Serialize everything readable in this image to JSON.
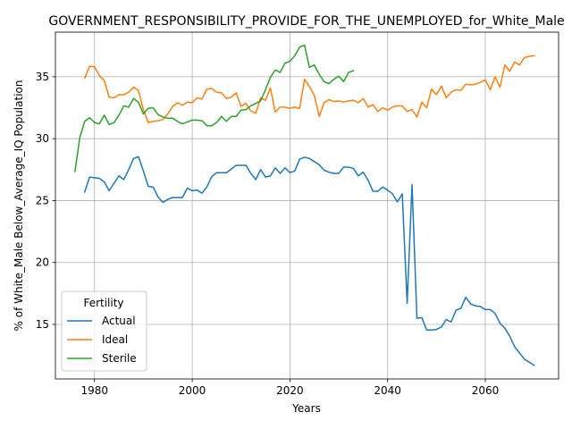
{
  "chart_data": {
    "type": "line",
    "title": "GOVERNMENT_RESPONSIBILITY_PROVIDE_FOR_THE_UNEMPLOYED_for_White_Male",
    "xlabel": "Years",
    "ylabel": "% of White_Male Below_Average_IQ Population",
    "xlim": [
      1972,
      2075
    ],
    "ylim": [
      10.6,
      38.6
    ],
    "x_ticks": [
      1980,
      2000,
      2020,
      2040,
      2060
    ],
    "y_ticks": [
      15,
      20,
      25,
      30,
      35
    ],
    "grid": true,
    "legend": {
      "title": "Fertility",
      "position": "lower-left"
    },
    "series": [
      {
        "name": "Actual",
        "color": "#1f77b4",
        "x": [
          1978,
          1979,
          1980,
          1981,
          1982,
          1983,
          1984,
          1985,
          1986,
          1987,
          1988,
          1989,
          1990,
          1991,
          1992,
          1993,
          1994,
          1995,
          1996,
          1997,
          1998,
          1999,
          2000,
          2001,
          2002,
          2003,
          2004,
          2005,
          2006,
          2007,
          2008,
          2009,
          2010,
          2011,
          2012,
          2013,
          2014,
          2015,
          2016,
          2017,
          2018,
          2019,
          2020,
          2021,
          2022,
          2023,
          2024,
          2025,
          2026,
          2027,
          2028,
          2029,
          2030,
          2031,
          2032,
          2033,
          2034,
          2035,
          2036,
          2037,
          2038,
          2039,
          2040,
          2041,
          2042,
          2043,
          2044,
          2045,
          2046,
          2047,
          2048,
          2049,
          2050,
          2051,
          2052,
          2053,
          2054,
          2055,
          2056,
          2057,
          2058,
          2059,
          2060,
          2061,
          2062,
          2063,
          2064,
          2065,
          2066,
          2067,
          2068,
          2069,
          2070
        ],
        "values": [
          25.7,
          26.9,
          26.85,
          26.8,
          26.5,
          25.8,
          26.4,
          27.0,
          26.7,
          27.5,
          28.4,
          28.55,
          27.4,
          26.15,
          26.1,
          25.3,
          24.85,
          25.1,
          25.25,
          25.25,
          25.25,
          26.0,
          25.8,
          25.85,
          25.6,
          26.1,
          26.95,
          27.25,
          27.25,
          27.25,
          27.55,
          27.85,
          27.85,
          27.85,
          27.2,
          26.7,
          27.5,
          26.9,
          27.0,
          27.65,
          27.2,
          27.65,
          27.25,
          27.4,
          28.35,
          28.5,
          28.4,
          28.15,
          27.9,
          27.45,
          27.3,
          27.2,
          27.2,
          27.7,
          27.7,
          27.6,
          27.0,
          27.3,
          26.65,
          25.75,
          25.75,
          26.1,
          25.85,
          25.55,
          24.9,
          25.55,
          16.7,
          26.3,
          15.5,
          15.55,
          14.55,
          14.55,
          14.6,
          14.8,
          15.4,
          15.2,
          16.15,
          16.3,
          17.2,
          16.65,
          16.5,
          16.45,
          16.2,
          16.2,
          15.9,
          15.1,
          14.7,
          14.05,
          13.2,
          12.7,
          12.2,
          11.95,
          11.7
        ]
      },
      {
        "name": "Ideal",
        "color": "#ff7f0e",
        "x": [
          1978,
          1979,
          1980,
          1981,
          1982,
          1983,
          1984,
          1985,
          1986,
          1987,
          1988,
          1989,
          1990,
          1991,
          1992,
          1993,
          1994,
          1995,
          1996,
          1997,
          1998,
          1999,
          2000,
          2001,
          2002,
          2003,
          2004,
          2005,
          2006,
          2007,
          2008,
          2009,
          2010,
          2011,
          2012,
          2013,
          2014,
          2015,
          2016,
          2017,
          2018,
          2019,
          2020,
          2021,
          2022,
          2023,
          2024,
          2025,
          2026,
          2027,
          2028,
          2029,
          2030,
          2031,
          2032,
          2033,
          2034,
          2035,
          2036,
          2037,
          2038,
          2039,
          2040,
          2041,
          2042,
          2043,
          2044,
          2045,
          2046,
          2047,
          2048,
          2049,
          2050,
          2051,
          2052,
          2053,
          2054,
          2055,
          2056,
          2057,
          2058,
          2059,
          2060,
          2061,
          2062,
          2063,
          2064,
          2065,
          2066,
          2067,
          2068,
          2069,
          2070
        ],
        "values": [
          34.9,
          35.85,
          35.8,
          35.1,
          34.7,
          33.35,
          33.3,
          33.55,
          33.55,
          33.75,
          34.15,
          33.9,
          32.35,
          31.3,
          31.4,
          31.45,
          31.55,
          32.0,
          32.6,
          32.9,
          32.7,
          32.95,
          32.9,
          33.3,
          33.2,
          34.0,
          34.05,
          33.75,
          33.7,
          33.25,
          33.35,
          33.7,
          32.6,
          32.85,
          32.25,
          32.05,
          33.3,
          33.1,
          34.1,
          32.15,
          32.55,
          32.55,
          32.45,
          32.55,
          32.45,
          34.8,
          34.2,
          33.5,
          31.8,
          32.9,
          33.15,
          33.0,
          33.05,
          32.95,
          33.05,
          33.1,
          32.9,
          33.25,
          32.55,
          32.75,
          32.2,
          32.5,
          32.3,
          32.55,
          32.65,
          32.65,
          32.2,
          32.35,
          31.75,
          32.95,
          32.5,
          34.0,
          33.55,
          34.25,
          33.3,
          33.75,
          33.95,
          33.9,
          34.4,
          34.35,
          34.4,
          34.55,
          34.75,
          33.95,
          35.0,
          34.15,
          35.95,
          35.45,
          36.2,
          35.95,
          36.55,
          36.65,
          36.7
        ]
      },
      {
        "name": "Sterile",
        "color": "#2ca02c",
        "x": [
          1976,
          1977,
          1978,
          1979,
          1980,
          1981,
          1982,
          1983,
          1984,
          1985,
          1986,
          1987,
          1988,
          1989,
          1990,
          1991,
          1992,
          1993,
          1994,
          1995,
          1996,
          1997,
          1998,
          1999,
          2000,
          2001,
          2002,
          2003,
          2004,
          2005,
          2006,
          2007,
          2008,
          2009,
          2010,
          2011,
          2012,
          2013,
          2014,
          2015,
          2016,
          2017,
          2018,
          2019,
          2020,
          2021,
          2022,
          2023,
          2024,
          2025,
          2026,
          2027,
          2028,
          2029,
          2030,
          2031,
          2032,
          2033
        ],
        "values": [
          27.35,
          30.1,
          31.4,
          31.7,
          31.3,
          31.2,
          31.9,
          31.15,
          31.3,
          31.9,
          32.65,
          32.55,
          33.25,
          32.95,
          32.0,
          32.45,
          32.5,
          31.95,
          31.75,
          31.65,
          31.65,
          31.4,
          31.2,
          31.35,
          31.5,
          31.5,
          31.45,
          31.05,
          31.05,
          31.3,
          31.8,
          31.4,
          31.8,
          31.8,
          32.3,
          32.35,
          32.65,
          32.85,
          33.05,
          33.95,
          34.95,
          35.55,
          35.35,
          36.1,
          36.25,
          36.7,
          37.4,
          37.55,
          35.75,
          35.95,
          35.2,
          34.6,
          34.45,
          34.8,
          35.05,
          34.6,
          35.35,
          35.5
        ]
      }
    ]
  }
}
